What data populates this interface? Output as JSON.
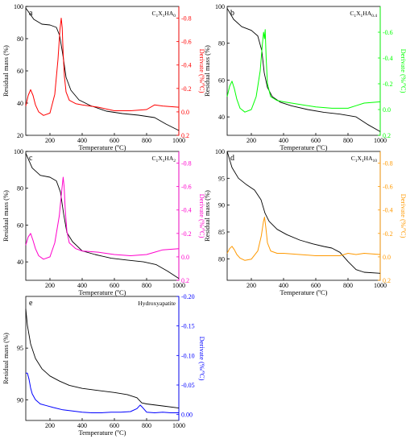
{
  "chart_data": [
    {
      "type": "line",
      "panel": "a",
      "sample": "C1X1HA0",
      "sample_main": "C",
      "sample_subs": [
        "1",
        "1",
        "0"
      ],
      "xlabel": "Temperature (ºC)",
      "ylabel": "Residual mass (%)",
      "y2label": "Derivate (%/ºC)",
      "xlim": [
        50,
        1000
      ],
      "ylim": [
        20,
        100
      ],
      "y2lim": [
        0.2,
        -0.9
      ],
      "y2_inverted": true,
      "xticks": [
        200,
        400,
        600,
        800,
        1000
      ],
      "yticks": [
        20,
        40,
        60,
        80,
        100
      ],
      "y2ticks": [
        0.2,
        0.0,
        -0.2,
        -0.4,
        -0.6,
        -0.8
      ],
      "y2tick_labels": [
        "0.2",
        "0.0",
        "-0.2",
        "-0.4",
        "-0.6",
        "-0.8"
      ],
      "deriv_color": "#ff0000",
      "series": [
        {
          "axis": "left",
          "color": "#000000",
          "x": [
            50,
            100,
            150,
            200,
            240,
            260,
            280,
            300,
            330,
            380,
            450,
            550,
            650,
            750,
            850,
            920,
            1000
          ],
          "y": [
            99,
            92,
            89,
            88.5,
            87,
            82,
            70,
            56,
            48,
            42,
            38.5,
            35,
            33.5,
            32.5,
            31,
            27,
            23
          ]
        },
        {
          "axis": "right",
          "color": "#ff0000",
          "x": [
            50,
            65,
            80,
            95,
            110,
            130,
            160,
            200,
            230,
            250,
            262,
            270,
            276,
            282,
            290,
            300,
            320,
            360,
            400,
            500,
            600,
            700,
            800,
            850,
            900,
            1000
          ],
          "y": [
            -0.05,
            -0.14,
            -0.19,
            -0.14,
            -0.06,
            0.0,
            0.03,
            0.01,
            -0.15,
            -0.45,
            -0.7,
            -0.8,
            -0.72,
            -0.5,
            -0.3,
            -0.17,
            -0.1,
            -0.07,
            -0.06,
            -0.04,
            -0.01,
            -0.01,
            -0.02,
            -0.06,
            -0.05,
            -0.04
          ]
        }
      ]
    },
    {
      "type": "line",
      "panel": "b",
      "sample": "C1X1HA0.4",
      "sample_main": "C",
      "sample_subs": [
        "1",
        "1",
        "0.4"
      ],
      "xlabel": "Temperature (ºC)",
      "ylabel": "Residual mass (%)",
      "y2label": "Derivate (%/ºC)",
      "xlim": [
        50,
        1000
      ],
      "ylim": [
        30,
        100
      ],
      "y2lim": [
        0.2,
        -0.8
      ],
      "y2_inverted": true,
      "xticks": [
        200,
        400,
        600,
        800,
        1000
      ],
      "yticks": [
        40,
        60,
        80,
        100
      ],
      "y2ticks": [
        0.2,
        0.0,
        -0.2,
        -0.4,
        -0.6
      ],
      "y2tick_labels": [
        "0.2",
        "0.0",
        "-0.2",
        "-0.4",
        "-0.6"
      ],
      "deriv_color": "#00ff00",
      "series": [
        {
          "axis": "left",
          "color": "#000000",
          "x": [
            50,
            90,
            140,
            200,
            240,
            265,
            280,
            300,
            330,
            380,
            450,
            550,
            650,
            750,
            850,
            920,
            1000
          ],
          "y": [
            99,
            93,
            89,
            87,
            84,
            76,
            64,
            56,
            51,
            48,
            46,
            44,
            42.5,
            41.5,
            40,
            36,
            32
          ]
        },
        {
          "axis": "right",
          "color": "#00ff00",
          "x": [
            50,
            65,
            80,
            95,
            110,
            130,
            160,
            200,
            230,
            255,
            268,
            276,
            282,
            286,
            292,
            300,
            320,
            360,
            400,
            500,
            600,
            700,
            800,
            850,
            900,
            1000
          ],
          "y": [
            -0.1,
            -0.18,
            -0.22,
            -0.16,
            -0.08,
            -0.01,
            0.02,
            0.0,
            -0.1,
            -0.3,
            -0.5,
            -0.6,
            -0.55,
            -0.62,
            -0.4,
            -0.2,
            -0.1,
            -0.07,
            -0.06,
            -0.04,
            -0.02,
            -0.01,
            -0.01,
            -0.03,
            -0.05,
            -0.06
          ]
        }
      ]
    },
    {
      "type": "line",
      "panel": "c",
      "sample": "C1X1HA2",
      "sample_main": "C",
      "sample_subs": [
        "1",
        "1",
        "2"
      ],
      "xlabel": "Temperature (ºC)",
      "ylabel": "Residual mass (%)",
      "y2label": "Derivate (%/ºC)",
      "xlim": [
        50,
        1000
      ],
      "ylim": [
        30,
        100
      ],
      "y2lim": [
        0.2,
        -0.9
      ],
      "y2_inverted": true,
      "xticks": [
        200,
        400,
        600,
        800,
        1000
      ],
      "yticks": [
        40,
        60,
        80,
        100
      ],
      "y2ticks": [
        0.2,
        0.0,
        -0.2,
        -0.4,
        -0.6,
        -0.8
      ],
      "y2tick_labels": [
        "0.2",
        "0.0",
        "-0.2",
        "-0.4",
        "-0.6",
        "-0.8"
      ],
      "deriv_color": "#ff00cc",
      "series": [
        {
          "axis": "left",
          "color": "#000000",
          "x": [
            50,
            90,
            140,
            200,
            240,
            265,
            285,
            305,
            340,
            400,
            480,
            580,
            680,
            780,
            860,
            930,
            1000
          ],
          "y": [
            99,
            91,
            87,
            86,
            84,
            78,
            66,
            56,
            51,
            46,
            44,
            42,
            41,
            40,
            38.5,
            35,
            31
          ]
        },
        {
          "axis": "right",
          "color": "#ff00cc",
          "x": [
            50,
            65,
            80,
            95,
            110,
            130,
            160,
            200,
            230,
            258,
            272,
            282,
            288,
            295,
            305,
            320,
            360,
            400,
            500,
            600,
            700,
            800,
            850,
            900,
            1000
          ],
          "y": [
            -0.1,
            -0.17,
            -0.2,
            -0.14,
            -0.07,
            -0.01,
            0.02,
            0.0,
            -0.12,
            -0.35,
            -0.55,
            -0.68,
            -0.6,
            -0.4,
            -0.22,
            -0.12,
            -0.07,
            -0.05,
            -0.04,
            -0.02,
            -0.01,
            -0.02,
            -0.04,
            -0.06,
            -0.07
          ]
        }
      ]
    },
    {
      "type": "line",
      "panel": "d",
      "sample": "C1X1HA10",
      "sample_main": "C",
      "sample_subs": [
        "1",
        "1",
        "10"
      ],
      "xlabel": "Temperature (ºC)",
      "ylabel": "Residual mass (%)",
      "y2label": "Derivate (%/ºC)",
      "xlim": [
        50,
        1000
      ],
      "ylim": [
        76,
        100
      ],
      "y2lim": [
        0.2,
        -0.9
      ],
      "y2_inverted": true,
      "xticks": [
        200,
        400,
        600,
        800,
        1000
      ],
      "yticks": [
        80,
        85,
        90,
        95,
        100
      ],
      "y2ticks": [
        0.2,
        0.0,
        -0.2,
        -0.4,
        -0.6,
        -0.8
      ],
      "y2tick_labels": [
        "0.2",
        "0.0",
        "-0.2",
        "-0.4",
        "-0.6",
        "-0.8"
      ],
      "deriv_color": "#ff9900",
      "series": [
        {
          "axis": "left",
          "color": "#000000",
          "x": [
            50,
            80,
            120,
            170,
            220,
            260,
            285,
            310,
            360,
            420,
            500,
            580,
            650,
            700,
            750,
            800,
            850,
            900,
            1000
          ],
          "y": [
            100,
            97,
            95,
            93.8,
            92.8,
            91,
            88.5,
            87,
            85.5,
            84.5,
            83.5,
            82.8,
            82.3,
            82,
            81.2,
            79.5,
            78,
            77.5,
            77.3
          ]
        },
        {
          "axis": "right",
          "color": "#ff9900",
          "x": [
            50,
            65,
            80,
            95,
            110,
            130,
            160,
            200,
            240,
            262,
            275,
            282,
            290,
            300,
            320,
            360,
            400,
            500,
            600,
            700,
            750,
            800,
            850,
            900,
            1000
          ],
          "y": [
            -0.03,
            -0.07,
            -0.09,
            -0.06,
            -0.02,
            0.01,
            0.03,
            0.02,
            -0.05,
            -0.18,
            -0.3,
            -0.34,
            -0.25,
            -0.12,
            -0.05,
            -0.03,
            -0.03,
            -0.02,
            -0.01,
            -0.01,
            -0.01,
            -0.03,
            -0.02,
            -0.03,
            -0.02
          ]
        }
      ]
    },
    {
      "type": "line",
      "panel": "e",
      "sample": "Hydroxyapatite",
      "sample_main": "Hydroxyapatite",
      "sample_subs": [],
      "xlabel": "Temperature (ºC)",
      "ylabel": "Residual mass (%)",
      "y2label": "Derivate (%/ºC)",
      "xlim": [
        50,
        1000
      ],
      "ylim": [
        88,
        100
      ],
      "y2lim": [
        0.01,
        -0.2
      ],
      "y2_inverted": true,
      "xticks": [
        200,
        400,
        600,
        800,
        1000
      ],
      "yticks": [
        90,
        95
      ],
      "y2ticks": [
        0.0,
        -0.05,
        -0.1,
        -0.15,
        -0.2
      ],
      "y2tick_labels": [
        "0.00",
        "-0.05",
        "-0.10",
        "-0.15",
        "-0.20"
      ],
      "deriv_color": "#0000ff",
      "series": [
        {
          "axis": "left",
          "color": "#000000",
          "x": [
            50,
            60,
            80,
            110,
            150,
            200,
            260,
            320,
            400,
            500,
            600,
            680,
            740,
            770,
            800,
            900,
            1000
          ],
          "y": [
            98.8,
            97.2,
            95.4,
            94.0,
            93.0,
            92.3,
            91.8,
            91.4,
            91.1,
            90.9,
            90.7,
            90.5,
            90.2,
            89.7,
            89.6,
            89.4,
            89.2
          ]
        },
        {
          "axis": "right",
          "color": "#0000ff",
          "x": [
            50,
            60,
            70,
            80,
            90,
            110,
            140,
            180,
            220,
            280,
            340,
            400,
            460,
            520,
            580,
            640,
            700,
            740,
            760,
            775,
            800,
            850,
            900,
            950,
            1000
          ],
          "y": [
            -0.07,
            -0.07,
            -0.06,
            -0.045,
            -0.035,
            -0.025,
            -0.018,
            -0.015,
            -0.012,
            -0.008,
            -0.006,
            -0.004,
            -0.003,
            -0.003,
            -0.004,
            -0.004,
            -0.005,
            -0.01,
            -0.016,
            -0.012,
            -0.004,
            -0.003,
            -0.004,
            -0.003,
            -0.003
          ]
        }
      ]
    }
  ]
}
